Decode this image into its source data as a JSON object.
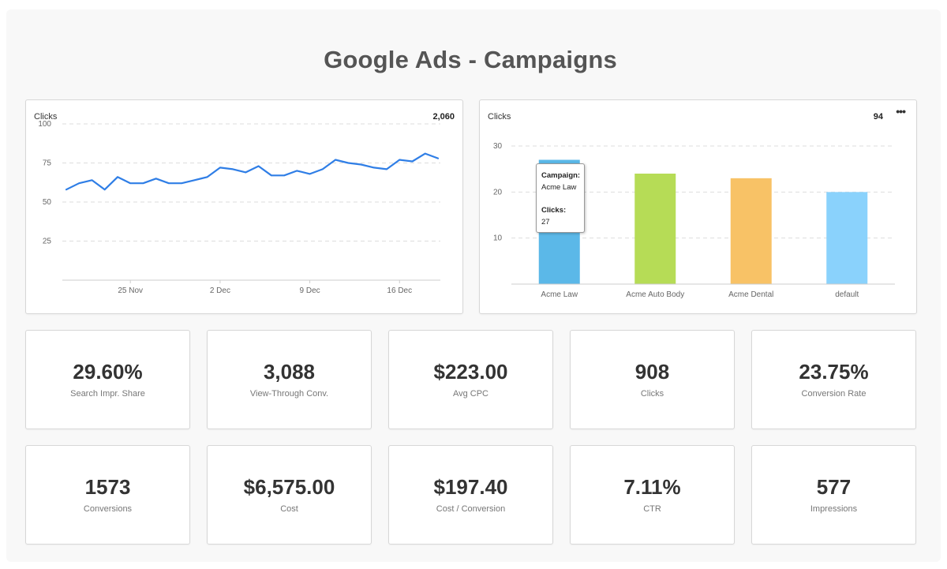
{
  "page": {
    "title": "Google Ads - Campaigns"
  },
  "colors": {
    "line": "#2f7ee6",
    "grid": "#dddddd",
    "axis": "#cccccc"
  },
  "line_card": {
    "title": "Clicks",
    "total": "2,060"
  },
  "bar_card": {
    "title": "Clicks",
    "total": "94",
    "menu_icon": "more-horizontal-icon",
    "tooltip": {
      "campaign_label": "Campaign:",
      "campaign_value": "Acme Law",
      "clicks_label": "Clicks:",
      "clicks_value": "27"
    }
  },
  "chart_data": [
    {
      "type": "line",
      "title": "Clicks",
      "ylim": [
        0,
        100
      ],
      "yticks": [
        25,
        50,
        75,
        100
      ],
      "xticks": [
        "25 Nov",
        "2 Dec",
        "9 Dec",
        "16 Dec"
      ],
      "xtick_index": [
        5,
        12,
        19,
        26
      ],
      "grid": true,
      "series": [
        {
          "values": [
            58,
            62,
            64,
            58,
            66,
            62,
            62,
            65,
            62,
            62,
            64,
            66,
            72,
            71,
            69,
            73,
            67,
            67,
            70,
            68,
            71,
            77,
            75,
            74,
            72,
            71,
            77,
            76,
            81,
            78
          ]
        }
      ]
    },
    {
      "type": "bar",
      "title": "Clicks",
      "categories": [
        "Acme Law",
        "Acme Auto Body",
        "Acme Dental",
        "default"
      ],
      "values": [
        27,
        24,
        23,
        20
      ],
      "colors": [
        "#5bb8e8",
        "#b6dc56",
        "#f8c266",
        "#8ad2fc"
      ],
      "ylim": [
        0,
        30
      ],
      "yticks": [
        10,
        20,
        30
      ],
      "grid": true
    }
  ],
  "metrics": [
    {
      "value": "29.60%",
      "label": "Search Impr. Share"
    },
    {
      "value": "3,088",
      "label": "View-Through Conv."
    },
    {
      "value": "$223.00",
      "label": "Avg CPC"
    },
    {
      "value": "908",
      "label": "Clicks"
    },
    {
      "value": "23.75%",
      "label": "Conversion Rate"
    },
    {
      "value": "1573",
      "label": "Conversions"
    },
    {
      "value": "$6,575.00",
      "label": "Cost"
    },
    {
      "value": "$197.40",
      "label": "Cost / Conversion"
    },
    {
      "value": "7.11%",
      "label": "CTR"
    },
    {
      "value": "577",
      "label": "Impressions"
    }
  ]
}
